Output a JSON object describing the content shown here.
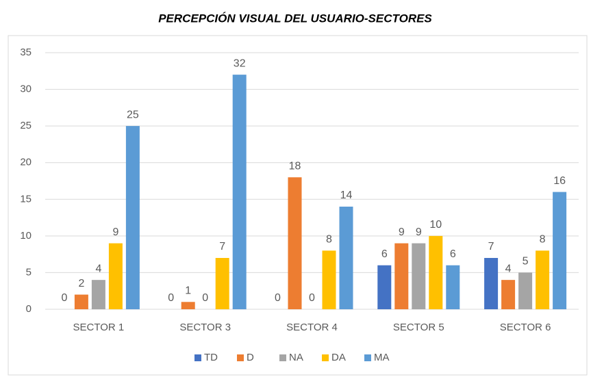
{
  "chart_data": {
    "type": "bar",
    "title": "PERCEPCIÓN VISUAL DEL USUARIO-SECTORES",
    "categories": [
      "SECTOR 1",
      "SECTOR 3",
      "SECTOR 4",
      "SECTOR 5",
      "SECTOR 6"
    ],
    "series": [
      {
        "name": "TD",
        "color": "#4472c4",
        "values": [
          0,
          0,
          0,
          6,
          7
        ]
      },
      {
        "name": "D",
        "color": "#ed7d31",
        "values": [
          2,
          1,
          18,
          9,
          4
        ]
      },
      {
        "name": "NA",
        "color": "#a5a5a5",
        "values": [
          4,
          0,
          0,
          9,
          5
        ]
      },
      {
        "name": "DA",
        "color": "#ffc000",
        "values": [
          9,
          7,
          8,
          10,
          8
        ]
      },
      {
        "name": "MA",
        "color": "#5b9bd5",
        "values": [
          25,
          32,
          14,
          6,
          16
        ]
      }
    ],
    "ylim": [
      0,
      35
    ],
    "yticks": [
      0,
      5,
      10,
      15,
      20,
      25,
      30,
      35
    ],
    "grid": true,
    "legend": "bottom"
  }
}
